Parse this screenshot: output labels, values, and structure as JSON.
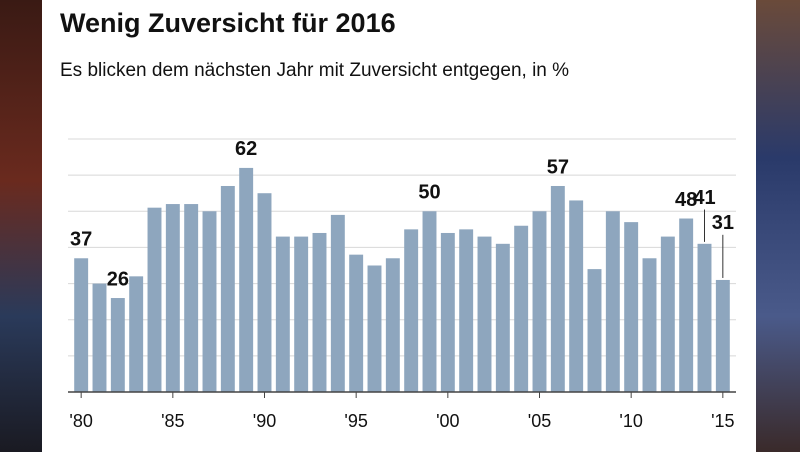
{
  "chart_data": {
    "type": "bar",
    "title": "Wenig Zuversicht für 2016",
    "subtitle": "Es blicken dem nächsten Jahr mit Zuversicht entgegen, in %",
    "categories": [
      "'80",
      null,
      null,
      null,
      null,
      "'85",
      null,
      null,
      null,
      null,
      "'90",
      null,
      null,
      null,
      null,
      "'95",
      null,
      null,
      null,
      null,
      "'00",
      null,
      null,
      null,
      null,
      "'05",
      null,
      null,
      null,
      null,
      "'10",
      null,
      null,
      null,
      null,
      "'15"
    ],
    "values": [
      37,
      30,
      26,
      32,
      51,
      52,
      52,
      50,
      57,
      62,
      55,
      43,
      43,
      44,
      49,
      38,
      35,
      37,
      45,
      50,
      44,
      45,
      43,
      41,
      46,
      50,
      57,
      53,
      34,
      50,
      47,
      37,
      43,
      48,
      41,
      31
    ],
    "value_labels": [
      "37",
      null,
      "26",
      null,
      null,
      null,
      null,
      null,
      null,
      "62",
      null,
      null,
      null,
      null,
      null,
      null,
      null,
      null,
      null,
      "50",
      null,
      null,
      null,
      null,
      null,
      null,
      "57",
      null,
      null,
      null,
      null,
      null,
      null,
      "48",
      "41",
      "31"
    ],
    "color": "#8ea6be",
    "ylim": [
      0,
      70
    ],
    "yticks": [
      0,
      10,
      20,
      30,
      40,
      50,
      60,
      70
    ],
    "grid": true
  }
}
